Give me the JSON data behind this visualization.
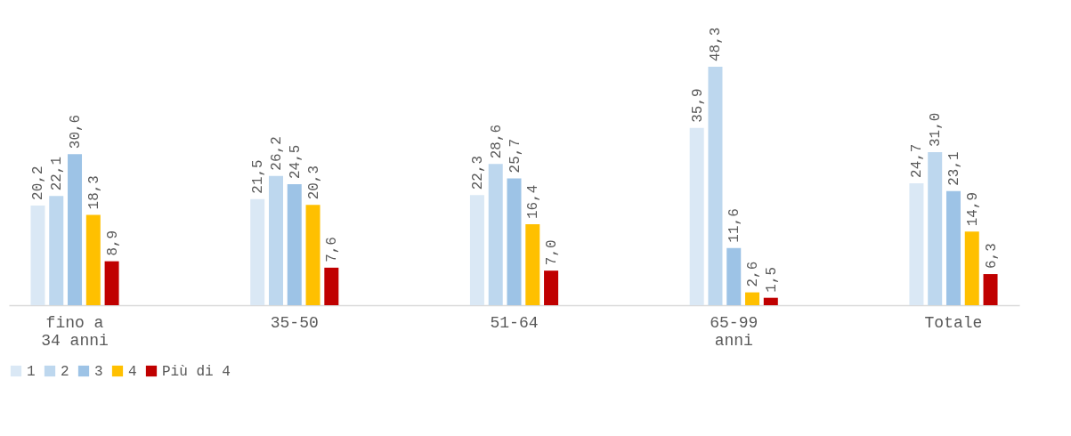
{
  "chart_data": {
    "type": "bar",
    "categories": [
      "fino a 34 anni",
      "35-50",
      "51-64",
      "65-99 anni",
      "Totale"
    ],
    "series": [
      {
        "name": "1",
        "color": "#dae8f5",
        "values": [
          20.2,
          21.5,
          22.3,
          35.9,
          24.7
        ],
        "value_labels": [
          "20,2",
          "21,5",
          "22,3",
          "35,9",
          "24,7"
        ]
      },
      {
        "name": "2",
        "color": "#bdd7ee",
        "values": [
          22.1,
          26.2,
          28.6,
          48.3,
          31.0
        ],
        "value_labels": [
          "22,1",
          "26,2",
          "28,6",
          "48,3",
          "31,0"
        ]
      },
      {
        "name": "3",
        "color": "#9dc3e6",
        "values": [
          30.6,
          24.5,
          25.7,
          11.6,
          23.1
        ],
        "value_labels": [
          "30,6",
          "24,5",
          "25,7",
          "11,6",
          "23,1"
        ]
      },
      {
        "name": "4",
        "color": "#ffc000",
        "values": [
          18.3,
          20.3,
          16.4,
          2.6,
          14.9
        ],
        "value_labels": [
          "18,3",
          "20,3",
          "16,4",
          "2,6",
          "14,9"
        ]
      },
      {
        "name": "Più di 4",
        "color": "#c00000",
        "values": [
          8.9,
          7.6,
          7.0,
          1.5,
          6.3
        ],
        "value_labels": [
          "8,9",
          "7,6",
          "7,0",
          "1,5",
          "6,3"
        ]
      }
    ],
    "legend": "bottom",
    "grid": false
  }
}
